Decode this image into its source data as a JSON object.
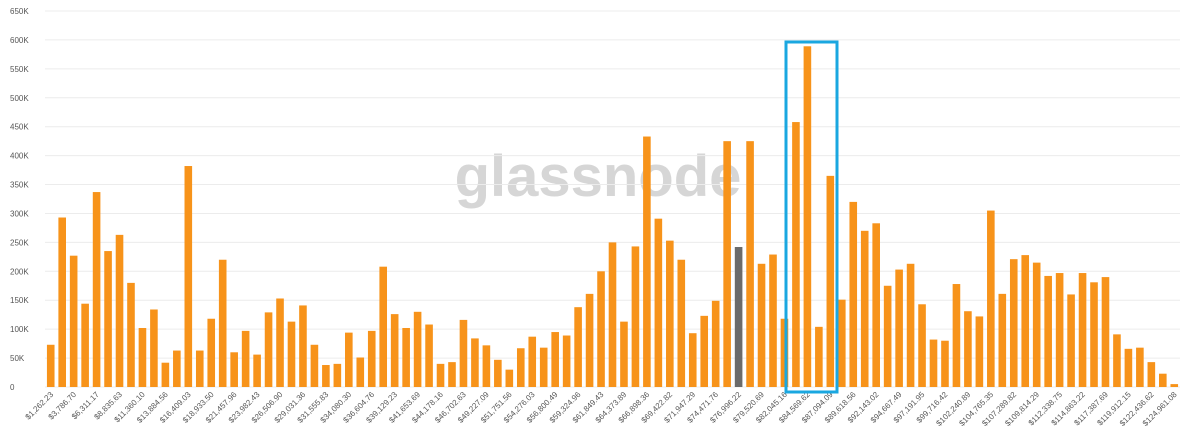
{
  "chart_data": {
    "type": "bar",
    "watermark": "glassnode",
    "color": "#f7931a",
    "highlight": {
      "index": 60,
      "color": "#6b6b6b"
    },
    "grid": true,
    "ylim": [
      0,
      650000
    ],
    "yticks": [
      {
        "value": 0,
        "label": "0"
      },
      {
        "value": 50000,
        "label": "50K"
      },
      {
        "value": 100000,
        "label": "100K"
      },
      {
        "value": 150000,
        "label": "150K"
      },
      {
        "value": 200000,
        "label": "200K"
      },
      {
        "value": 250000,
        "label": "250K"
      },
      {
        "value": 300000,
        "label": "300K"
      },
      {
        "value": 350000,
        "label": "350K"
      },
      {
        "value": 400000,
        "label": "400K"
      },
      {
        "value": 450000,
        "label": "450K"
      },
      {
        "value": 500000,
        "label": "500K"
      },
      {
        "value": 550000,
        "label": "550K"
      },
      {
        "value": 600000,
        "label": "600K"
      },
      {
        "value": 650000,
        "label": "650K"
      }
    ],
    "categories": [
      "$1,262.23",
      null,
      "$3,786.70",
      null,
      "$6,311.17",
      null,
      "$8,835.63",
      null,
      "$11,360.10",
      null,
      "$13,884.56",
      null,
      "$16,409.03",
      null,
      "$18,933.50",
      null,
      "$21,457.96",
      null,
      "$23,982.43",
      null,
      "$26,506.90",
      null,
      "$29,031.36",
      null,
      "$31,555.83",
      null,
      "$34,080.30",
      null,
      "$36,604.76",
      null,
      "$39,129.23",
      null,
      "$41,653.69",
      null,
      "$44,178.16",
      null,
      "$46,702.63",
      null,
      "$49,227.09",
      null,
      "$51,751.56",
      null,
      "$54,276.03",
      null,
      "$56,800.49",
      null,
      "$59,324.96",
      null,
      "$61,849.43",
      null,
      "$64,373.89",
      null,
      "$66,898.36",
      null,
      "$69,422.82",
      null,
      "$71,947.29",
      null,
      "$74,471.76",
      null,
      "$76,996.22",
      null,
      "$79,520.69",
      null,
      "$82,045.16",
      null,
      "$84,569.62",
      null,
      "$87,094.09",
      null,
      "$89,618.56",
      null,
      "$92,143.02",
      null,
      "$94,667.49",
      null,
      "$97,191.95",
      null,
      "$99,716.42",
      null,
      "$102,240.89",
      null,
      "$104,765.35",
      null,
      "$107,289.82",
      null,
      "$109,814.29",
      null,
      "$112,338.75",
      null,
      "$114,863.22",
      null,
      "$117,387.69",
      null,
      "$119,912.15",
      null,
      "$122,436.62",
      null,
      "$124,961.08"
    ],
    "values": [
      73000,
      293000,
      227000,
      144000,
      337000,
      235000,
      263000,
      180000,
      102000,
      134000,
      42000,
      63000,
      382000,
      63000,
      118000,
      220000,
      60000,
      97000,
      56000,
      129000,
      153000,
      113000,
      141000,
      73000,
      38000,
      40000,
      94000,
      51000,
      97000,
      208000,
      126000,
      102000,
      130000,
      108000,
      40000,
      43000,
      116000,
      84000,
      72000,
      47000,
      30000,
      67000,
      87000,
      68000,
      95000,
      89000,
      138000,
      161000,
      200000,
      250000,
      113000,
      243000,
      433000,
      291000,
      253000,
      220000,
      93000,
      123000,
      149000,
      425000,
      242000,
      425000,
      213000,
      229000,
      118000,
      458000,
      589000,
      104000,
      365000,
      151000,
      320000,
      270000,
      283000,
      175000,
      203000,
      213000,
      143000,
      82000,
      80000,
      178000,
      131000,
      122000,
      305000,
      161000,
      221000,
      228000,
      215000,
      192000,
      197000,
      160000,
      197000,
      181000,
      190000,
      91000,
      66000,
      68000,
      43000,
      23000,
      5000
    ]
  }
}
